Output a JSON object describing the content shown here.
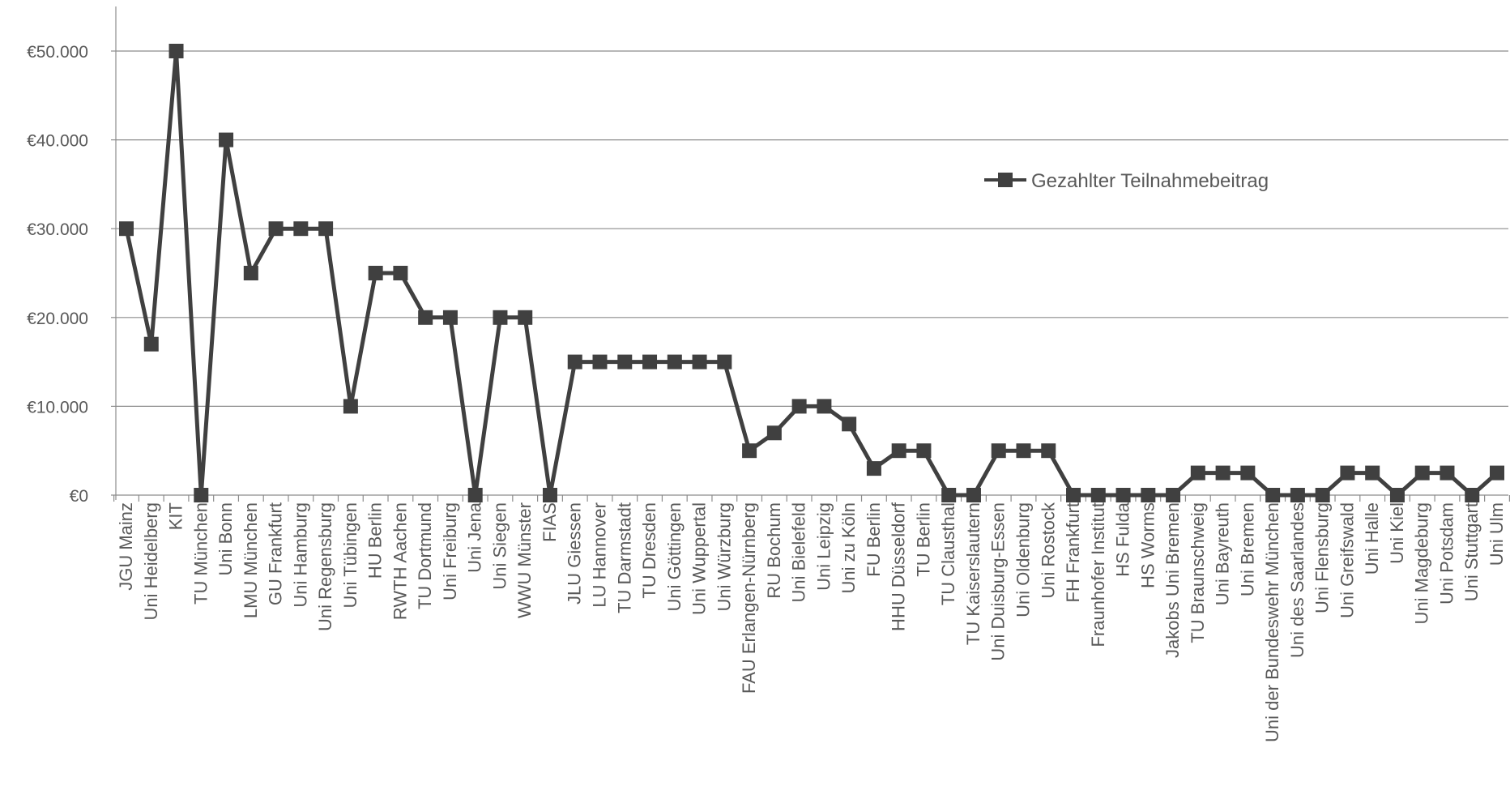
{
  "chart_data": {
    "type": "line",
    "title": "",
    "xlabel": "",
    "ylabel": "",
    "ylim": [
      0,
      50000
    ],
    "yticks": [
      {
        "value": 0,
        "label": "€0"
      },
      {
        "value": 10000,
        "label": "€10.000"
      },
      {
        "value": 20000,
        "label": "€20.000"
      },
      {
        "value": 30000,
        "label": "€30.000"
      },
      {
        "value": 40000,
        "label": "€40.000"
      },
      {
        "value": 50000,
        "label": "€50.000"
      }
    ],
    "grid": true,
    "legend_position": "right",
    "categories": [
      "JGU Mainz",
      "Uni Heidelberg",
      "KIT",
      "TU München",
      "Uni Bonn",
      "LMU München",
      "GU Frankfurt",
      "Uni Hamburg",
      "Uni Regensburg",
      "Uni Tübingen",
      "HU Berlin",
      "RWTH Aachen",
      "TU Dortmund",
      "Uni Freiburg",
      "Uni Jena",
      "Uni Siegen",
      "WWU Münster",
      "FIAS",
      "JLU Giessen",
      "LU Hannover",
      "TU Darmstadt",
      "TU Dresden",
      "Uni Göttingen",
      "Uni Wuppertal",
      "Uni Würzburg",
      "FAU Erlangen-Nürnberg",
      "RU Bochum",
      "Uni Bielefeld",
      "Uni Leipzig",
      "Uni zu Köln",
      "FU Berlin",
      "HHU Düsseldorf",
      "TU Berlin",
      "TU Clausthal",
      "TU Kaiserslautern",
      "Uni Duisburg-Essen",
      "Uni Oldenburg",
      "Uni Rostock",
      "FH Frankfurt",
      "Fraunhofer Institut",
      "HS Fulda",
      "HS Worms",
      "Jakobs Uni Bremen",
      "TU Braunschweig",
      "Uni Bayreuth",
      "Uni Bremen",
      "Uni der Bundeswehr München",
      "Uni des Saarlandes",
      "Uni Flensburg",
      "Uni Greifswald",
      "Uni Halle",
      "Uni Kiel",
      "Uni Magdeburg",
      "Uni Potsdam",
      "Uni Stuttgart",
      "Uni Ulm"
    ],
    "series": [
      {
        "name": "Gezahlter Teilnahmebeitrag",
        "color": "#404040",
        "marker": "square",
        "values": [
          30000,
          17000,
          50000,
          0,
          40000,
          25000,
          30000,
          30000,
          30000,
          10000,
          25000,
          25000,
          20000,
          20000,
          0,
          20000,
          20000,
          0,
          15000,
          15000,
          15000,
          15000,
          15000,
          15000,
          15000,
          5000,
          7000,
          10000,
          10000,
          8000,
          3000,
          5000,
          5000,
          0,
          0,
          5000,
          5000,
          5000,
          0,
          0,
          0,
          0,
          0,
          2500,
          2500,
          2500,
          0,
          0,
          0,
          2500,
          2500,
          0,
          2500,
          2500,
          0,
          2500
        ]
      }
    ]
  }
}
